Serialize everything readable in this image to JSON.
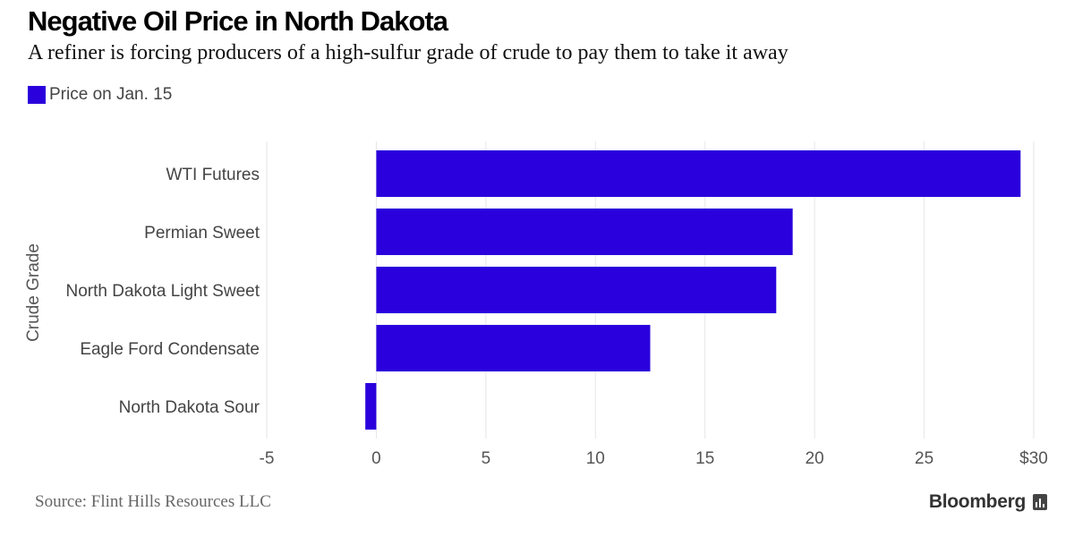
{
  "chart_data": {
    "type": "bar",
    "orientation": "horizontal",
    "title": "Negative Oil Price in North Dakota",
    "subtitle": "A refiner is forcing producers of a high-sulfur grade of crude to pay them to take it away",
    "ylabel": "Crude Grade",
    "xlabel": "",
    "categories": [
      "WTI Futures",
      "Permian Sweet",
      "North Dakota Light Sweet",
      "Eagle Ford Condensate",
      "North Dakota Sour"
    ],
    "series": [
      {
        "name": "Price on Jan. 15",
        "values": [
          29.4,
          19.0,
          18.25,
          12.5,
          -0.5
        ],
        "color": "#2a00dc"
      }
    ],
    "xlim": [
      -5,
      30
    ],
    "xticks": [
      -5,
      0,
      5,
      10,
      15,
      20,
      25,
      30
    ],
    "xtick_labels": [
      "-5",
      "0",
      "5",
      "10",
      "15",
      "20",
      "25",
      "$30"
    ],
    "grid": true,
    "legend_position": "top-left"
  },
  "source": "Source: Flint Hills Resources LLC",
  "brand": "Bloomberg",
  "colors": {
    "bar": "#2a00dc",
    "grid": "#e6e6e6"
  }
}
